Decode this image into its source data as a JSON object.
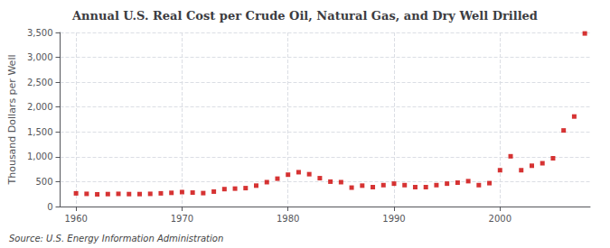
{
  "chart_data": {
    "type": "scatter",
    "title": "Annual U.S. Real Cost per Crude Oil, Natural Gas, and Dry Well Drilled",
    "ylabel": "Thousand Dollars per Well",
    "source": "Source: U.S. Energy Information Administration",
    "x": [
      1960,
      1961,
      1962,
      1963,
      1964,
      1965,
      1966,
      1967,
      1968,
      1969,
      1970,
      1971,
      1972,
      1973,
      1974,
      1975,
      1976,
      1977,
      1978,
      1979,
      1980,
      1981,
      1982,
      1983,
      1984,
      1985,
      1986,
      1987,
      1988,
      1989,
      1990,
      1991,
      1992,
      1993,
      1994,
      1995,
      1996,
      1997,
      1998,
      1999,
      2000,
      2001,
      2002,
      2003,
      2004,
      2005,
      2006,
      2007,
      2008
    ],
    "values": [
      265,
      255,
      245,
      250,
      255,
      250,
      250,
      255,
      265,
      275,
      290,
      280,
      270,
      300,
      350,
      360,
      370,
      420,
      490,
      560,
      640,
      690,
      650,
      570,
      500,
      490,
      380,
      420,
      390,
      430,
      460,
      430,
      390,
      390,
      430,
      460,
      480,
      510,
      430,
      470,
      730,
      1010,
      730,
      820,
      870,
      970,
      1530,
      1810,
      3480
    ],
    "color": "#cc0000",
    "marker": "square",
    "xlim": [
      1958.5,
      2008.5
    ],
    "xticks": [
      1960,
      1970,
      1980,
      1990,
      2000
    ],
    "ylim": [
      0,
      3500
    ],
    "yticks": [
      0,
      500,
      {
        "value": 1000,
        "label": "1,000"
      },
      {
        "value": 1500,
        "label": "1,500"
      },
      {
        "value": 2000,
        "label": "2,000"
      },
      {
        "value": 2500,
        "label": "2,500"
      },
      {
        "value": 3000,
        "label": "3,000"
      },
      {
        "value": 3500,
        "label": "3,500"
      }
    ],
    "grid": true
  }
}
